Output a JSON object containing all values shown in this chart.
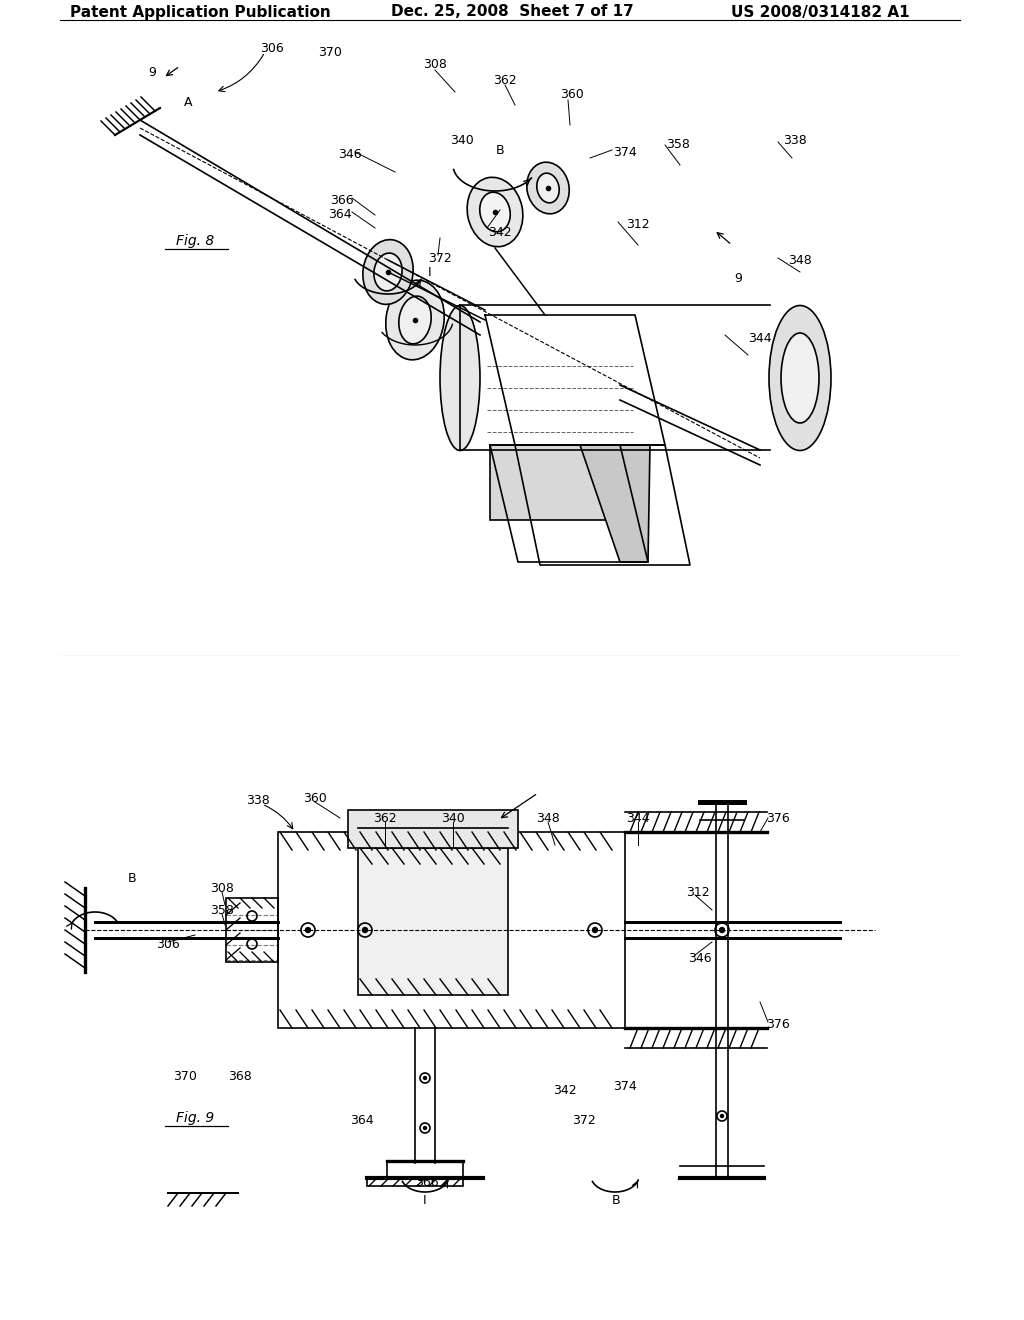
{
  "background_color": "#ffffff",
  "header_left": "Patent Application Publication",
  "header_mid": "Dec. 25, 2008  Sheet 7 of 17",
  "header_right": "US 2008/0314182 A1",
  "header_fontsize": 11,
  "fig8_label": "Fig. 8",
  "fig9_label": "Fig. 9",
  "line_color": "#000000",
  "lw": 1.2
}
